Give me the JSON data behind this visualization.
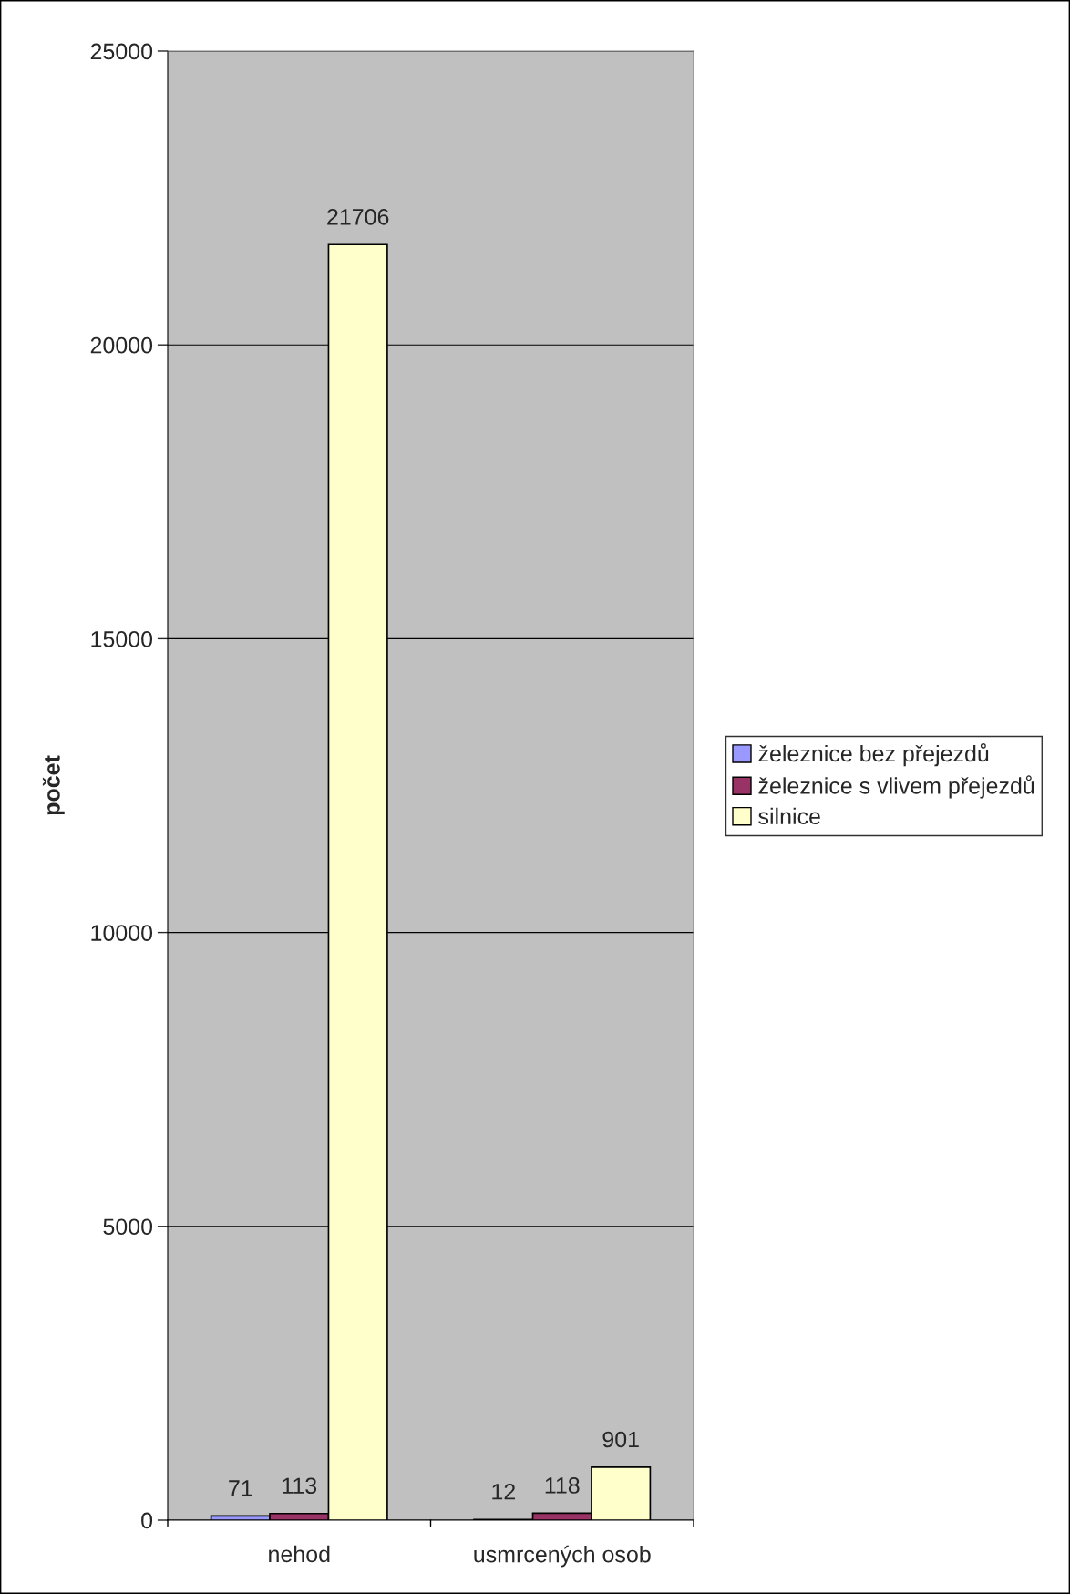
{
  "chart_data": {
    "type": "bar",
    "ylabel": "počet",
    "categories": [
      "nehod",
      "usmrcených osob"
    ],
    "series": [
      {
        "name": "železnice bez přejezdů",
        "color": "#9999ff",
        "values": [
          71,
          12
        ]
      },
      {
        "name": "železnice s vlivem přejezdů",
        "color": "#993366",
        "values": [
          113,
          118
        ]
      },
      {
        "name": "silnice",
        "color": "#ffffcc",
        "values": [
          21706,
          901
        ]
      }
    ],
    "ylim": [
      0,
      25000
    ],
    "yticks": [
      0,
      5000,
      10000,
      15000,
      20000,
      25000
    ],
    "grid": "y",
    "legend": "right",
    "data_labels": true
  }
}
